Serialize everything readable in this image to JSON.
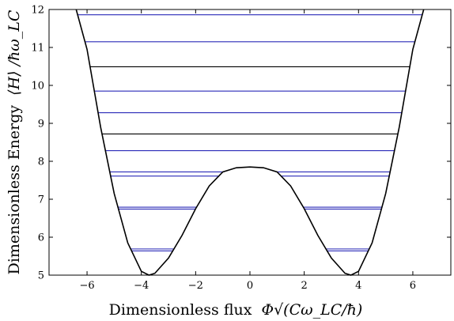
{
  "chart_data": {
    "type": "line",
    "xlabel": "Dimensionless flux",
    "xlabel_math": "Φ√(Cω_LC/ħ)",
    "ylabel": "Dimensionless Energy",
    "ylabel_math": "⟨H⟩ /ħω_LC",
    "xlim": [
      -7.4,
      7.4
    ],
    "ylim": [
      5,
      12
    ],
    "x_ticks": [
      -6,
      -4,
      -2,
      0,
      2,
      4,
      6
    ],
    "y_ticks": [
      5,
      6,
      7,
      8,
      9,
      10,
      11,
      12
    ],
    "x_tick_labels": [
      "−6",
      "−4",
      "−2",
      "0",
      "2",
      "4",
      "6"
    ],
    "y_tick_labels": [
      "5",
      "6",
      "7",
      "8",
      "9",
      "10",
      "11",
      "12"
    ],
    "potential": {
      "description": "double-well potential",
      "color": "#000000",
      "x": [
        -6.4,
        -6.0,
        -5.5,
        -5.0,
        -4.5,
        -4.0,
        -3.72,
        -3.5,
        -3.0,
        -2.5,
        -2.0,
        -1.5,
        -1.0,
        -0.5,
        0,
        0.5,
        1.0,
        1.5,
        2.0,
        2.5,
        3.0,
        3.5,
        3.72,
        4.0,
        4.5,
        5.0,
        5.5,
        6.0,
        6.4
      ],
      "y": [
        12.0,
        10.95,
        8.9,
        7.15,
        5.85,
        5.1,
        5.0,
        5.05,
        5.45,
        6.05,
        6.75,
        7.35,
        7.72,
        7.83,
        7.85,
        7.83,
        7.72,
        7.35,
        6.75,
        6.05,
        5.45,
        5.05,
        5.0,
        5.1,
        5.85,
        7.15,
        8.9,
        10.95,
        12.0
      ]
    },
    "energy_levels": [
      {
        "y": 5.64,
        "color": "#2a2ab8"
      },
      {
        "y": 5.69,
        "color": "#2a2ab8"
      },
      {
        "y": 6.74,
        "color": "#2a2ab8"
      },
      {
        "y": 6.79,
        "color": "#2a2ab8"
      },
      {
        "y": 7.61,
        "color": "#2a2ab8"
      },
      {
        "y": 7.72,
        "color": "#2a2ab8"
      },
      {
        "y": 8.28,
        "color": "#2a2ab8"
      },
      {
        "y": 8.72,
        "color": "#000000"
      },
      {
        "y": 9.28,
        "color": "#2a2ab8"
      },
      {
        "y": 9.85,
        "color": "#2a2ab8"
      },
      {
        "y": 10.49,
        "color": "#000000"
      },
      {
        "y": 11.15,
        "color": "#2a2ab8"
      },
      {
        "y": 11.86,
        "color": "#2a2ab8"
      }
    ]
  }
}
